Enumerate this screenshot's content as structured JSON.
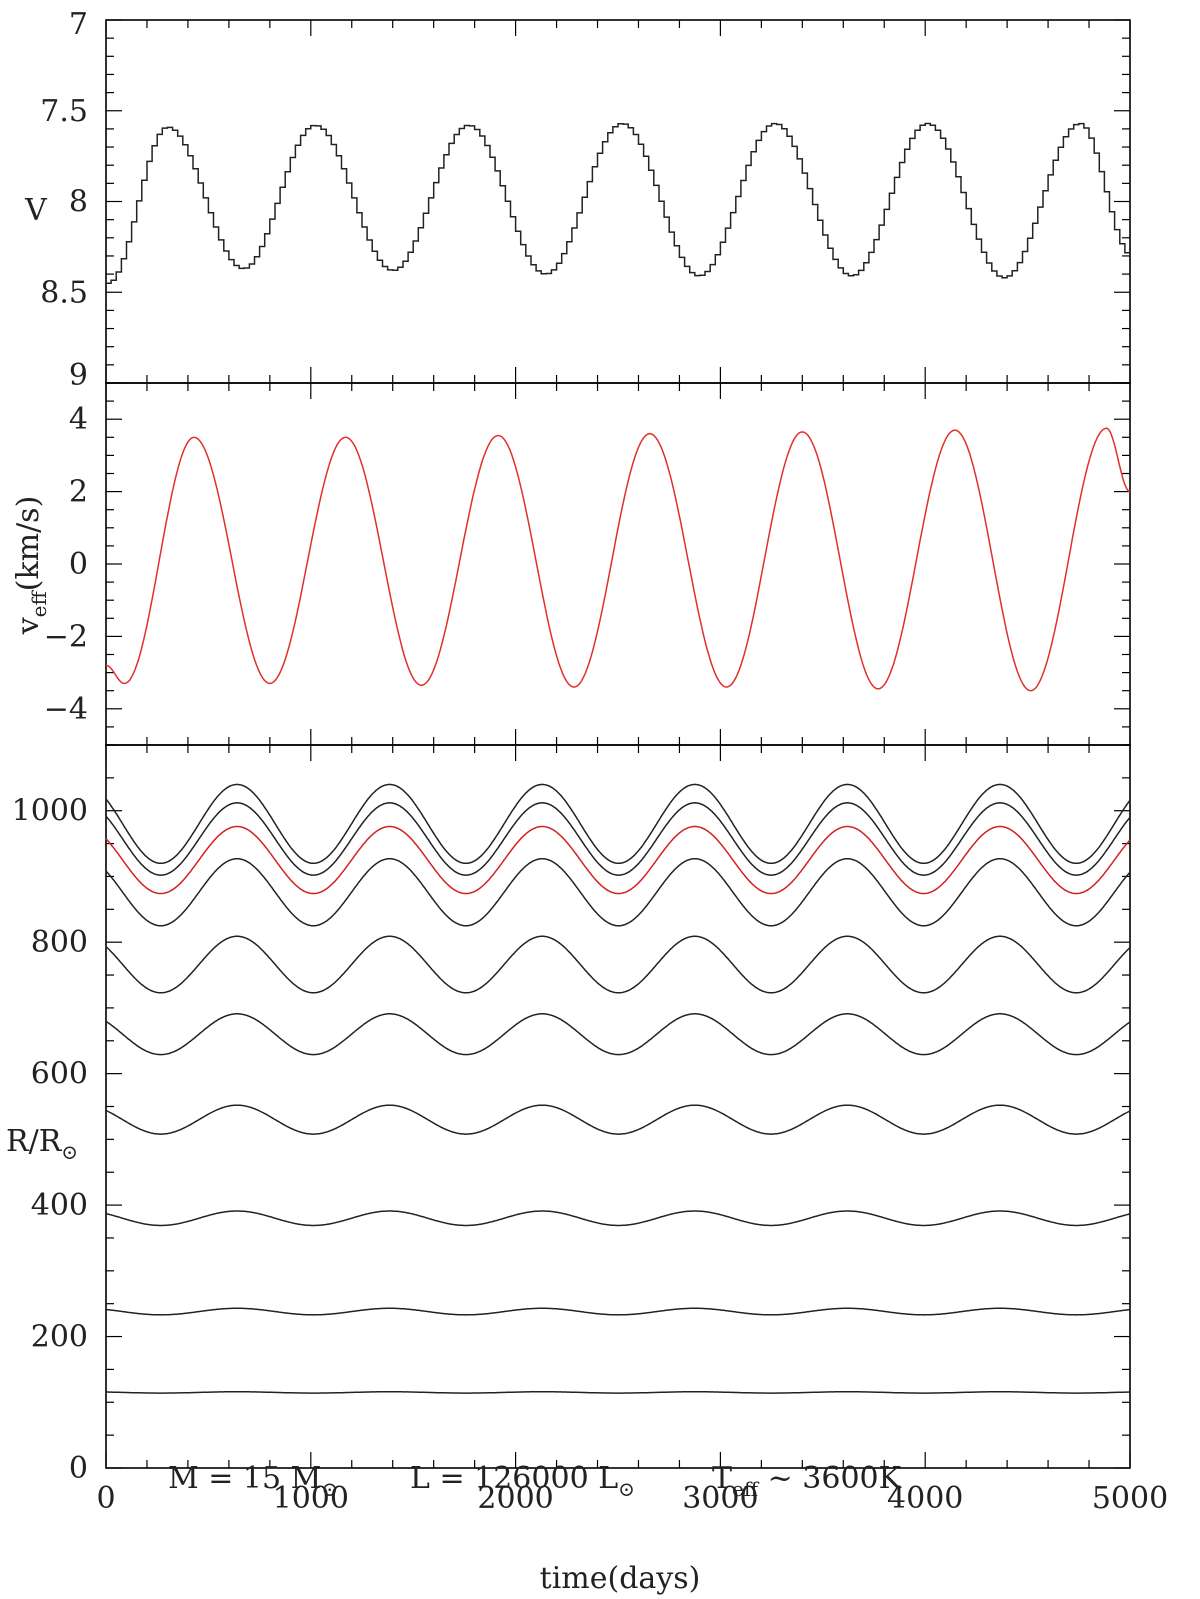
{
  "chart_data": [
    {
      "type": "line",
      "panel": "top",
      "ylabel": "V",
      "ylim": [
        9,
        7
      ],
      "inverted_y": true,
      "yticks": [
        "7",
        "7.5",
        "8",
        "8.5",
        "9"
      ],
      "xlim": [
        0,
        5000
      ],
      "series": [
        {
          "color": "#222222",
          "style": "stepped",
          "period_days": 745,
          "x": [
            0,
            290,
            660,
            1010,
            1390,
            1760,
            2135,
            2510,
            2885,
            3255,
            3630,
            4000,
            4375,
            4745,
            5000
          ],
          "values": [
            8.45,
            7.59,
            8.37,
            7.58,
            8.38,
            7.58,
            8.4,
            7.57,
            8.41,
            7.57,
            8.41,
            7.57,
            8.42,
            7.57,
            8.3
          ]
        }
      ]
    },
    {
      "type": "line",
      "panel": "middle",
      "ylabel_main": "v",
      "ylabel_sub": "eff",
      "ylabel_unit": "(km/s)",
      "ylim": [
        -5,
        5
      ],
      "yticks": [
        "4",
        "2",
        "0",
        "−2",
        "−4"
      ],
      "xlim": [
        0,
        5000
      ],
      "series": [
        {
          "color": "#e0302a",
          "period_days": 745,
          "x": [
            0,
            90,
            430,
            800,
            1170,
            1540,
            1915,
            2285,
            2655,
            3030,
            3400,
            3770,
            4145,
            4515,
            4885,
            5000
          ],
          "values": [
            -2.8,
            -3.3,
            3.5,
            -3.3,
            3.5,
            -3.35,
            3.55,
            -3.4,
            3.6,
            -3.4,
            3.65,
            -3.45,
            3.7,
            -3.5,
            3.75,
            2.0
          ]
        }
      ]
    },
    {
      "type": "line",
      "panel": "bottom",
      "ylabel_main": "R/R",
      "ylabel_sun": "⊙",
      "ylim": [
        0,
        1100
      ],
      "yticks": [
        "0",
        "200",
        "400",
        "600",
        "800",
        "1000"
      ],
      "xlabel": "time(days)",
      "xlim": [
        0,
        5000
      ],
      "xticks": [
        "0",
        "1000",
        "2000",
        "3000",
        "4000",
        "5000"
      ],
      "series": [
        {
          "color": "#222222",
          "period_days": 745,
          "mean": 980,
          "amplitude": 60
        },
        {
          "color": "#222222",
          "period_days": 745,
          "mean": 957,
          "amplitude": 55
        },
        {
          "color": "#d42020",
          "period_days": 745,
          "mean": 925,
          "amplitude": 51
        },
        {
          "color": "#222222",
          "period_days": 745,
          "mean": 876,
          "amplitude": 51
        },
        {
          "color": "#222222",
          "period_days": 745,
          "mean": 766,
          "amplitude": 43
        },
        {
          "color": "#222222",
          "period_days": 745,
          "mean": 660,
          "amplitude": 31
        },
        {
          "color": "#222222",
          "period_days": 745,
          "mean": 530,
          "amplitude": 22
        },
        {
          "color": "#222222",
          "period_days": 745,
          "mean": 380,
          "amplitude": 11
        },
        {
          "color": "#222222",
          "period_days": 745,
          "mean": 238,
          "amplitude": 5
        },
        {
          "color": "#222222",
          "period_days": 745,
          "mean": 115,
          "amplitude": 1
        }
      ],
      "annotation": {
        "m_text": "M  =  15  M",
        "l_text": "L  =  126000  L",
        "sun": "⊙",
        "t_text": "T",
        "t_sub": "eff",
        "t_rest": " ~  3600K"
      }
    }
  ]
}
